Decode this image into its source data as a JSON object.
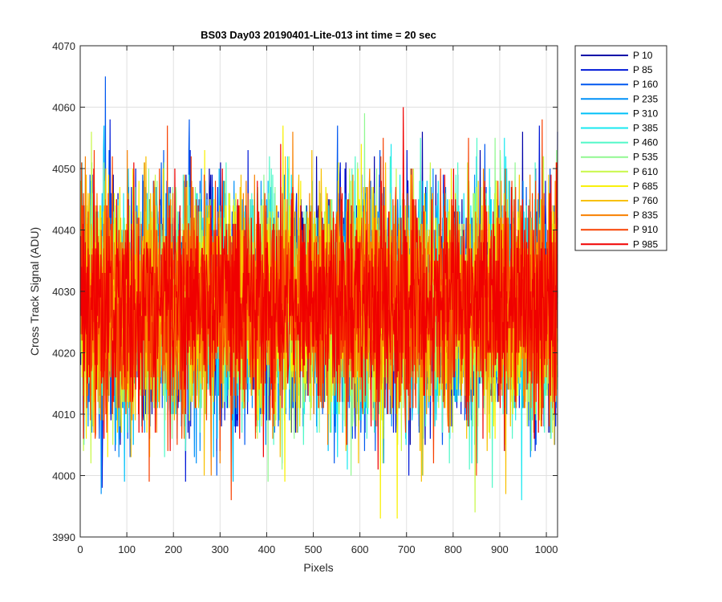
{
  "chart_data": {
    "type": "line",
    "title": "BS03 Day03 20190401-Lite-013 int time = 20 sec",
    "xlabel": "Pixels",
    "ylabel": "Cross Track Signal (ADU)",
    "xlim": [
      0,
      1024
    ],
    "ylim": [
      3990,
      4070
    ],
    "xticks": [
      0,
      100,
      200,
      300,
      400,
      500,
      600,
      700,
      800,
      900,
      1000
    ],
    "yticks": [
      3990,
      4000,
      4010,
      4020,
      4030,
      4040,
      4050,
      4060,
      4070
    ],
    "grid": true,
    "legend_position": "outside-top-right",
    "n_points": 1024,
    "noise_mean": 4028,
    "noise_sd": 9,
    "series": [
      {
        "name": "P 10",
        "color": "#0000a8",
        "values": []
      },
      {
        "name": "P 85",
        "color": "#0018d8",
        "values": []
      },
      {
        "name": "P 160",
        "color": "#0058f0",
        "values": []
      },
      {
        "name": "P 235",
        "color": "#0090f8",
        "values": []
      },
      {
        "name": "P 310",
        "color": "#00c0f8",
        "values": []
      },
      {
        "name": "P 385",
        "color": "#18e8f0",
        "values": []
      },
      {
        "name": "P 460",
        "color": "#50f8c8",
        "values": []
      },
      {
        "name": "P 535",
        "color": "#90f890",
        "values": []
      },
      {
        "name": "P 610",
        "color": "#c8f848",
        "values": []
      },
      {
        "name": "P 685",
        "color": "#f8f000",
        "values": []
      },
      {
        "name": "P 760",
        "color": "#f8c000",
        "values": []
      },
      {
        "name": "P 835",
        "color": "#f88000",
        "values": []
      },
      {
        "name": "P 910",
        "color": "#f84000",
        "values": []
      },
      {
        "name": "P 985",
        "color": "#f00000",
        "values": []
      }
    ]
  }
}
